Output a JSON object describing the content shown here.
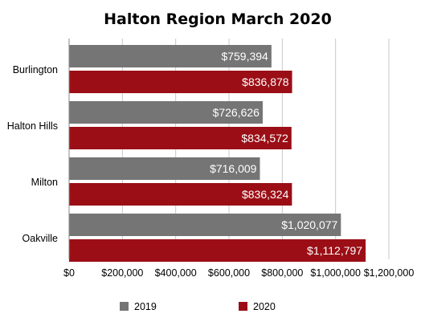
{
  "chart_data": {
    "type": "bar",
    "orientation": "horizontal",
    "title": "Halton Region March 2020",
    "categories": [
      "Burlington",
      "Halton Hills",
      "Milton",
      "Oakville"
    ],
    "series": [
      {
        "name": "2019",
        "color": "#757575",
        "values": [
          759394,
          726626,
          716009,
          1020077
        ],
        "labels": [
          "$759,394",
          "$726,626",
          "$716,009",
          "$1,020,077"
        ]
      },
      {
        "name": "2020",
        "color": "#9b0e16",
        "values": [
          836878,
          834572,
          836324,
          1112797
        ],
        "labels": [
          "$836,878",
          "$834,572",
          "$836,324",
          "$1,112,797"
        ]
      }
    ],
    "xlim": [
      0,
      1200000
    ],
    "x_ticks": [
      0,
      200000,
      400000,
      600000,
      800000,
      1000000,
      1200000
    ],
    "x_tick_labels": [
      "$0",
      "$200,000",
      "$400,000",
      "$600,000",
      "$800,000",
      "$1,000,000",
      "$1,200,000"
    ],
    "xlabel": "",
    "ylabel": "",
    "grid": true,
    "legend_position": "bottom"
  }
}
